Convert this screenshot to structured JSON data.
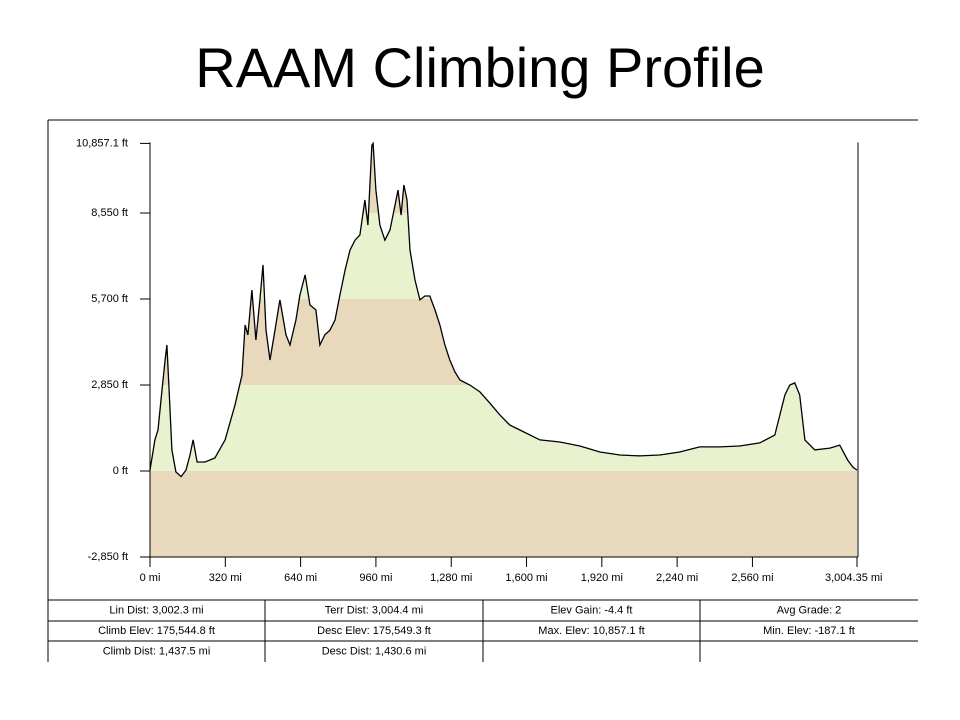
{
  "chart_data": {
    "type": "area",
    "title": "RAAM Climbing Profile",
    "x": [
      0,
      21,
      34,
      51,
      64,
      72,
      81,
      93,
      110,
      132,
      153,
      170,
      183,
      200,
      234,
      276,
      319,
      361,
      391,
      404,
      416,
      433,
      450,
      467,
      480,
      493,
      510,
      531,
      552,
      578,
      595,
      620,
      637,
      659,
      680,
      705,
      722,
      743,
      765,
      786,
      807,
      829,
      850,
      871,
      892,
      913,
      926,
      943,
      948,
      960,
      977,
      998,
      1020,
      1041,
      1054,
      1067,
      1079,
      1092,
      1105,
      1126,
      1147,
      1168,
      1189,
      1211,
      1232,
      1253,
      1274,
      1296,
      1317,
      1359,
      1402,
      1444,
      1487,
      1529,
      1572,
      1657,
      1742,
      1827,
      1912,
      1997,
      2082,
      2166,
      2251,
      2336,
      2421,
      2506,
      2591,
      2655,
      2698,
      2719,
      2740,
      2761,
      2783,
      2825,
      2889,
      2931,
      2965,
      2987,
      3004.35
    ],
    "values": [
      30,
      1030,
      1360,
      2680,
      3680,
      4175,
      2680,
      700,
      -30,
      -187.1,
      30,
      530,
      1030,
      300,
      300,
      430,
      1030,
      2190,
      3180,
      4840,
      4510,
      6000,
      4340,
      5670,
      6830,
      4670,
      3680,
      4670,
      5670,
      4510,
      4175,
      5000,
      5830,
      6500,
      5500,
      5340,
      4175,
      4510,
      4670,
      5000,
      5830,
      6660,
      7320,
      7650,
      7820,
      8980,
      8150,
      10800,
      10857.1,
      9310,
      8150,
      7650,
      7990,
      8810,
      9310,
      8480,
      9480,
      8980,
      7320,
      6330,
      5670,
      5800,
      5800,
      5340,
      4840,
      4175,
      3680,
      3280,
      3015,
      2850,
      2620,
      2250,
      1860,
      1520,
      1360,
      1030,
      960,
      830,
      630,
      530,
      500,
      530,
      630,
      800,
      800,
      830,
      930,
      1190,
      2520,
      2850,
      2920,
      2520,
      1030,
      700,
      760,
      860,
      360,
      130,
      30
    ],
    "color": "#000000",
    "band_colors": [
      "#e8d9bd",
      "#e9f2cf"
    ],
    "xlim": [
      0,
      3004.35
    ],
    "ylim": [
      -2850,
      10857.1
    ],
    "xticks": [
      {
        "value": 0,
        "label": "0 mi"
      },
      {
        "value": 320,
        "label": "320 mi"
      },
      {
        "value": 640,
        "label": "640 mi"
      },
      {
        "value": 960,
        "label": "960 mi"
      },
      {
        "value": 1280,
        "label": "1,280 mi"
      },
      {
        "value": 1600,
        "label": "1,600 mi"
      },
      {
        "value": 1920,
        "label": "1,920 mi"
      },
      {
        "value": 2240,
        "label": "2,240 mi"
      },
      {
        "value": 2560,
        "label": "2,560 mi"
      },
      {
        "value": 3004.35,
        "label": "3,004.35 mi"
      }
    ],
    "yticks": [
      {
        "value": -2850,
        "label": "-2,850 ft"
      },
      {
        "value": 0,
        "label": "0 ft"
      },
      {
        "value": 2850,
        "label": "2,850 ft"
      },
      {
        "value": 5700,
        "label": "5,700 ft"
      },
      {
        "value": 8550,
        "label": "8,550 ft"
      },
      {
        "value": 10857.1,
        "label": "10,857.1 ft"
      }
    ],
    "stats": [
      [
        "Lin Dist:  3,002.3 mi",
        "Terr Dist:  3,004.4 mi",
        "Elev Gain:  -4.4 ft",
        "Avg Grade:  2"
      ],
      [
        "Climb Elev:  175,544.8 ft",
        "Desc Elev:  175,549.3 ft",
        "Max. Elev:  10,857.1 ft",
        "Min. Elev:  -187.1 ft"
      ],
      [
        "Climb Dist:  1,437.5 mi",
        "Desc Dist:  1,430.6 mi"
      ]
    ]
  }
}
